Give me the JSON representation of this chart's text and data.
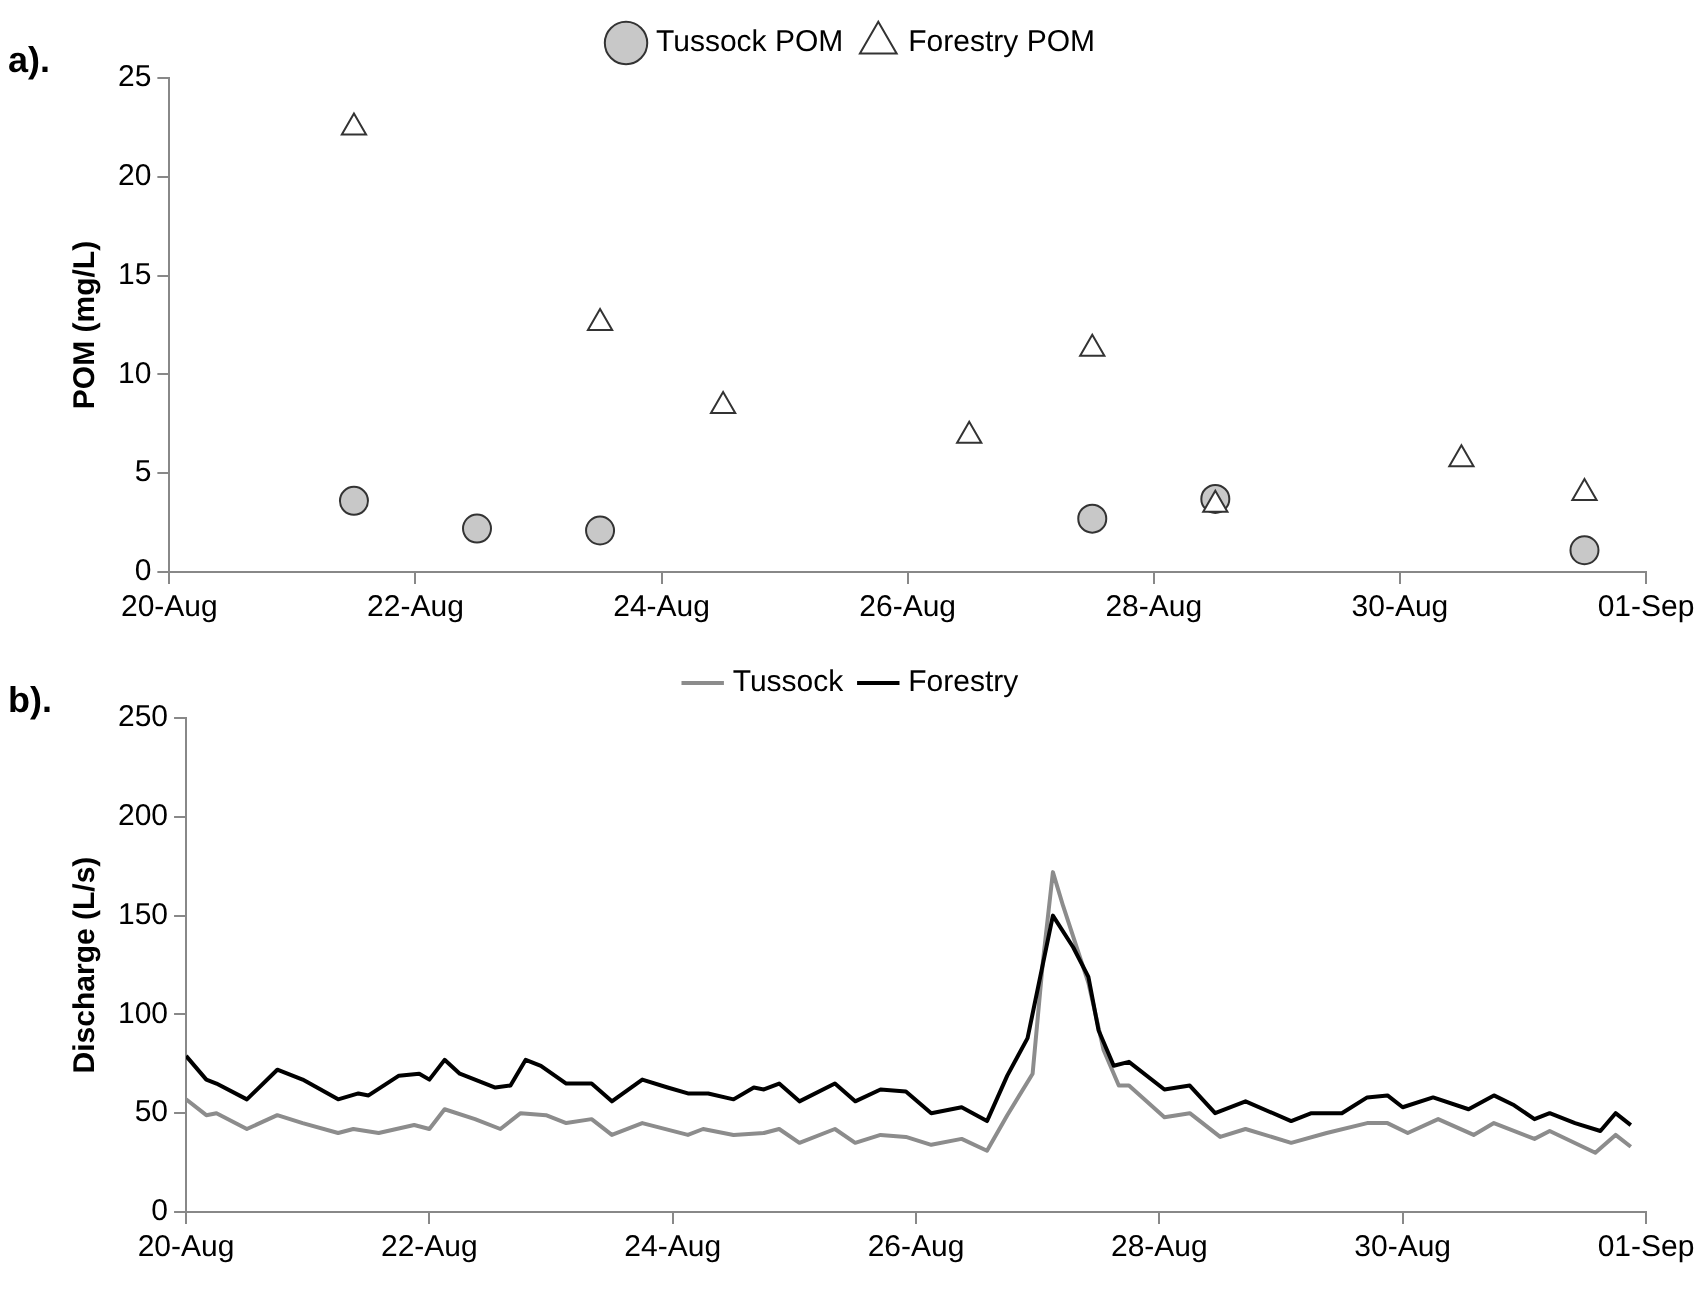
{
  "chart_data": [
    {
      "type": "scatter",
      "ylabel": "POM (mg/L)",
      "annotations": [
        "a)."
      ],
      "legend": "top",
      "grid": false,
      "xlim": [
        "--08-20",
        "--09-01"
      ],
      "xticks": [
        {
          "value": "--08-20",
          "label": "20-Aug"
        },
        {
          "value": "--08-22",
          "label": "22-Aug"
        },
        {
          "value": "--08-24",
          "label": "24-Aug"
        },
        {
          "value": "--08-26",
          "label": "26-Aug"
        },
        {
          "value": "--08-28",
          "label": "28-Aug"
        },
        {
          "value": "--08-30",
          "label": "30-Aug"
        },
        {
          "value": "--09-01",
          "label": "01-Sep"
        }
      ],
      "ylim": [
        0,
        25
      ],
      "yticks": [
        0,
        5,
        10,
        15,
        20,
        25
      ],
      "series": [
        {
          "name": "Tussock POM",
          "color": "#c8c8c8",
          "marker": "circle",
          "x": [
            "--08-21T12:00",
            "--08-22T12:00",
            "--08-23T12:00",
            "--08-27T12:00",
            "--08-28T12:00",
            "--08-31T12:00"
          ],
          "values": [
            3.6,
            2.2,
            2.1,
            2.7,
            3.7,
            1.1
          ]
        },
        {
          "name": "Forestry POM",
          "color": "#ffffff",
          "marker": "triangle",
          "x": [
            "--08-21T12:00",
            "--08-23T12:00",
            "--08-24T12:00",
            "--08-26T12:00",
            "--08-27T12:00",
            "--08-28T12:00",
            "--08-30T12:00",
            "--08-31T12:00"
          ],
          "values": [
            22.5,
            12.6,
            8.4,
            6.9,
            11.3,
            3.4,
            5.7,
            4.0
          ]
        }
      ]
    },
    {
      "type": "line",
      "ylabel": "Discharge (L/s)",
      "annotations": [
        "b)."
      ],
      "legend": "top",
      "grid": false,
      "marker": "none",
      "xlim": [
        "--08-20",
        "--09-01"
      ],
      "xticks": [
        {
          "value": "--08-20",
          "label": "20-Aug"
        },
        {
          "value": "--08-22",
          "label": "22-Aug"
        },
        {
          "value": "--08-24",
          "label": "24-Aug"
        },
        {
          "value": "--08-26",
          "label": "26-Aug"
        },
        {
          "value": "--08-28",
          "label": "28-Aug"
        },
        {
          "value": "--08-30",
          "label": "30-Aug"
        },
        {
          "value": "--09-01",
          "label": "01-Sep"
        }
      ],
      "ylim": [
        0,
        250
      ],
      "yticks": [
        0,
        50,
        100,
        150,
        200,
        250
      ],
      "series": [
        {
          "name": "Tussock",
          "color": "#8c8c8c",
          "x": [
            "--08-20T00:00",
            "--08-20T04:00",
            "--08-20T06:00",
            "--08-20T12:00",
            "--08-20T18:00",
            "--08-20T23:00",
            "--08-21T06:00",
            "--08-21T09:00",
            "--08-21T14:00",
            "--08-21T21:00",
            "--08-22T00:00",
            "--08-22T03:00",
            "--08-22T09:00",
            "--08-22T14:00",
            "--08-22T18:00",
            "--08-22T23:00",
            "--08-23T03:00",
            "--08-23T08:00",
            "--08-23T12:00",
            "--08-23T18:00",
            "--08-24T03:00",
            "--08-24T06:00",
            "--08-24T12:00",
            "--08-24T18:00",
            "--08-24T21:00",
            "--08-25T01:00",
            "--08-25T08:00",
            "--08-25T12:00",
            "--08-25T17:00",
            "--08-25T22:00",
            "--08-26T03:00",
            "--08-26T09:00",
            "--08-26T14:00",
            "--08-26T18:00",
            "--08-26T23:00",
            "--08-27T01:00",
            "--08-27T03:00",
            "--08-27T05:00",
            "--08-27T10:00",
            "--08-27T13:00",
            "--08-27T16:00",
            "--08-27T18:00",
            "--08-28T01:00",
            "--08-28T06:00",
            "--08-28T12:00",
            "--08-28T17:00",
            "--08-29T02:00",
            "--08-29T09:00",
            "--08-29T17:00",
            "--08-29T21:00",
            "--08-30T01:00",
            "--08-30T07:00",
            "--08-30T14:00",
            "--08-30T18:00",
            "--08-31T02:00",
            "--08-31T05:00",
            "--08-31T14:00",
            "--08-31T18:00",
            "--08-31T21:00"
          ],
          "values": [
            57,
            49,
            50,
            42,
            49,
            45,
            40,
            42,
            40,
            44,
            42,
            52,
            47,
            42,
            50,
            49,
            45,
            47,
            39,
            45,
            39,
            42,
            39,
            40,
            42,
            35,
            42,
            35,
            39,
            38,
            34,
            37,
            31,
            49,
            70,
            126,
            172,
            155,
            116,
            82,
            64,
            64,
            48,
            50,
            38,
            42,
            35,
            40,
            45,
            45,
            40,
            47,
            39,
            45,
            37,
            41,
            30,
            39,
            33
          ]
        },
        {
          "name": "Forestry",
          "color": "#000000",
          "x": [
            "--08-20T00:00",
            "--08-20T04:00",
            "--08-20T06:00",
            "--08-20T12:00",
            "--08-20T18:00",
            "--08-20T23:00",
            "--08-21T06:00",
            "--08-21T10:00",
            "--08-21T12:00",
            "--08-21T18:00",
            "--08-21T22:00",
            "--08-22T00:00",
            "--08-22T03:00",
            "--08-22T06:00",
            "--08-22T09:00",
            "--08-22T13:00",
            "--08-22T16:00",
            "--08-22T19:00",
            "--08-22T22:00",
            "--08-23T03:00",
            "--08-23T08:00",
            "--08-23T12:00",
            "--08-23T18:00",
            "--08-23T23:00",
            "--08-24T03:00",
            "--08-24T07:00",
            "--08-24T12:00",
            "--08-24T16:00",
            "--08-24T18:00",
            "--08-24T21:00",
            "--08-25T01:00",
            "--08-25T08:00",
            "--08-25T12:00",
            "--08-25T17:00",
            "--08-25T22:00",
            "--08-26T03:00",
            "--08-26T09:00",
            "--08-26T14:00",
            "--08-26T18:00",
            "--08-26T22:00",
            "--08-27T03:00",
            "--08-27T07:00",
            "--08-27T10:00",
            "--08-27T12:00",
            "--08-27T15:00",
            "--08-27T18:00",
            "--08-28T01:00",
            "--08-28T06:00",
            "--08-28T11:00",
            "--08-28T17:00",
            "--08-29T02:00",
            "--08-29T06:00",
            "--08-29T12:00",
            "--08-29T17:00",
            "--08-29T21:00",
            "--08-30T00:00",
            "--08-30T06:00",
            "--08-30T13:00",
            "--08-30T18:00",
            "--08-30T22:00",
            "--08-31T02:00",
            "--08-31T05:00",
            "--08-31T10:00",
            "--08-31T15:00",
            "--08-31T18:00",
            "--08-31T21:00"
          ],
          "values": [
            79,
            67,
            65,
            57,
            72,
            67,
            57,
            60,
            59,
            69,
            70,
            67,
            77,
            70,
            67,
            63,
            64,
            77,
            74,
            65,
            65,
            56,
            67,
            63,
            60,
            60,
            57,
            63,
            62,
            65,
            56,
            65,
            56,
            62,
            61,
            50,
            53,
            46,
            69,
            88,
            150,
            134,
            119,
            92,
            74,
            76,
            62,
            64,
            50,
            56,
            46,
            50,
            50,
            58,
            59,
            53,
            58,
            52,
            59,
            54,
            47,
            50,
            45,
            41,
            50,
            44
          ]
        }
      ]
    }
  ]
}
